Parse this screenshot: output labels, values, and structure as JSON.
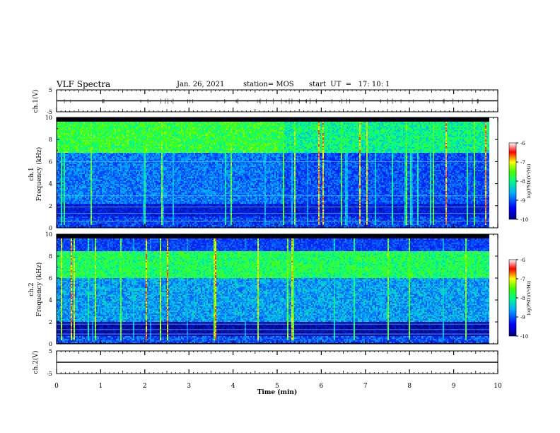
{
  "header": {
    "title": "VLF Spectra",
    "date": "Jan. 26, 2021",
    "station": "station= MOS",
    "start": "start  UT  =   17: 10: 1"
  },
  "chart_data": [
    {
      "type": "line",
      "name": "waveform ch.1",
      "ylabel": "ch.1(V)",
      "ylim": [
        -5,
        5
      ],
      "yticks": [
        "5",
        "-5"
      ],
      "x": [
        0,
        10
      ],
      "values": [
        0,
        0
      ]
    },
    {
      "type": "heatmap",
      "name": "spectrogram ch.1",
      "ylabel": "ch.1\nFrequency (kHz)",
      "ylim": [
        0,
        10
      ],
      "yticks": [
        "0",
        "2",
        "4",
        "6",
        "8",
        "10"
      ],
      "xlim": [
        0,
        10
      ],
      "colorbar": {
        "label": "log(PSD)(V²/Hz)",
        "range": [
          -10,
          -6
        ],
        "ticks": [
          "-6",
          "-7",
          "-8",
          "-9",
          "-10"
        ]
      }
    },
    {
      "type": "heatmap",
      "name": "spectrogram ch.2",
      "ylabel": "ch.2\nFrequency (kHz)",
      "ylim": [
        0,
        10
      ],
      "yticks": [
        "0",
        "2",
        "4",
        "6",
        "8",
        "10"
      ],
      "xlim": [
        0,
        10
      ],
      "colorbar": {
        "label": "log(PSD)(V²/Hz)",
        "range": [
          -10,
          -6
        ],
        "ticks": [
          "-6",
          "-7",
          "-8",
          "-9",
          "-10"
        ]
      }
    },
    {
      "type": "line",
      "name": "waveform ch.2",
      "ylabel": "ch.2(V)",
      "ylim": [
        -5,
        5
      ],
      "yticks": [
        "5",
        "-5"
      ],
      "x": [
        0,
        10
      ],
      "values": [
        0,
        0
      ],
      "xlabel": "Time (min)",
      "xticks": [
        "0",
        "1",
        "2",
        "3",
        "4",
        "5",
        "6",
        "7",
        "8",
        "9",
        "10"
      ]
    }
  ],
  "labels": {
    "wave1_ylabel": "ch.1(V)",
    "spec1_ylabel_a": "ch.1",
    "spec1_ylabel_b": "Frequency (kHz)",
    "spec2_ylabel_a": "ch.2",
    "spec2_ylabel_b": "Frequency (kHz)",
    "wave2_ylabel": "ch.2(V)",
    "xlabel": "Time (min)",
    "cbar_label": "log(PSD)(V²/Hz)"
  },
  "colors": {
    "background": "#000000",
    "low": "#0000a0",
    "mid": "#00ff00",
    "high": "#ff0000",
    "frame": "#000000"
  }
}
